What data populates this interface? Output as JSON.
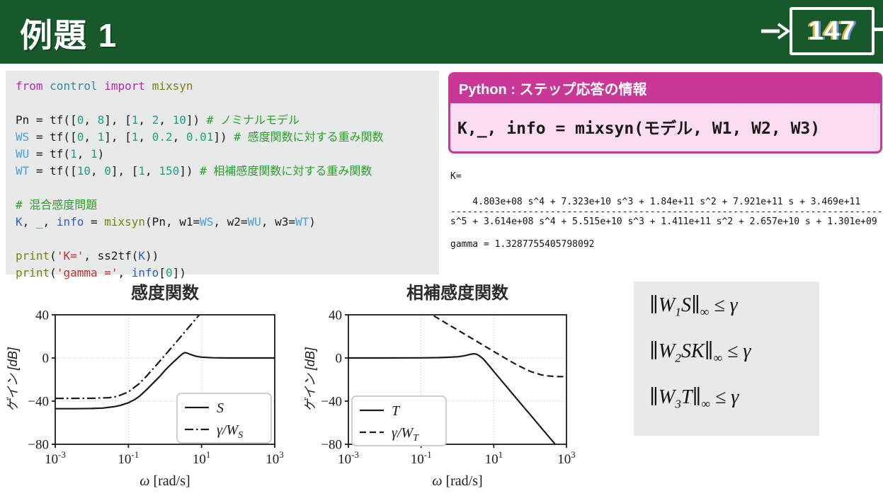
{
  "header": {
    "title": "例題 1",
    "page_number": "147"
  },
  "code_panel": {
    "syntax_colors": {
      "kw": "#bb24bb",
      "mod": "#2e8ba2",
      "fn": "#80800d",
      "num": "#1f9e85",
      "com": "#27a327",
      "str": "#c22f2f",
      "var": "#2b5fc0",
      "var2": "#4aa0dc",
      "plain": "#1a1a1a"
    },
    "lines": [
      [
        [
          "from",
          "kw"
        ],
        [
          " ",
          ""
        ],
        [
          "control",
          "mod"
        ],
        [
          " ",
          ""
        ],
        [
          "import",
          "kw"
        ],
        [
          " ",
          ""
        ],
        [
          "mixsyn",
          "fn"
        ]
      ],
      [],
      [
        [
          "Pn = tf([",
          ""
        ],
        [
          "0",
          "num"
        ],
        [
          ", ",
          ""
        ],
        [
          "8",
          "num"
        ],
        [
          "], [",
          ""
        ],
        [
          "1",
          "num"
        ],
        [
          ", ",
          ""
        ],
        [
          "2",
          "num"
        ],
        [
          ", ",
          ""
        ],
        [
          "10",
          "num"
        ],
        [
          "]) ",
          ""
        ],
        [
          "# ノミナルモデル",
          "com"
        ]
      ],
      [
        [
          "WS",
          "var2"
        ],
        [
          " = tf([",
          ""
        ],
        [
          "0",
          "num"
        ],
        [
          ", ",
          ""
        ],
        [
          "1",
          "num"
        ],
        [
          "], [",
          ""
        ],
        [
          "1",
          "num"
        ],
        [
          ", ",
          ""
        ],
        [
          "0.2",
          "num"
        ],
        [
          ", ",
          ""
        ],
        [
          "0.01",
          "num"
        ],
        [
          "]) ",
          ""
        ],
        [
          "# 感度関数に対する重み関数",
          "com"
        ]
      ],
      [
        [
          "WU",
          "var2"
        ],
        [
          " = tf(",
          ""
        ],
        [
          "1",
          "num"
        ],
        [
          ", ",
          ""
        ],
        [
          "1",
          "num"
        ],
        [
          ")",
          ""
        ]
      ],
      [
        [
          "WT",
          "var2"
        ],
        [
          " = tf([",
          ""
        ],
        [
          "10",
          "num"
        ],
        [
          ", ",
          ""
        ],
        [
          "0",
          "num"
        ],
        [
          "], [",
          ""
        ],
        [
          "1",
          "num"
        ],
        [
          ", ",
          ""
        ],
        [
          "150",
          "num"
        ],
        [
          "]) ",
          ""
        ],
        [
          "# 相補感度関数に対する重み関数",
          "com"
        ]
      ],
      [],
      [
        [
          "# 混合感度問題",
          "com"
        ]
      ],
      [
        [
          "K",
          "var"
        ],
        [
          ", ",
          ""
        ],
        [
          "_",
          "var"
        ],
        [
          ", ",
          ""
        ],
        [
          "info",
          "var"
        ],
        [
          " = ",
          ""
        ],
        [
          "mixsyn",
          "fn"
        ],
        [
          "(Pn, w1=",
          ""
        ],
        [
          "WS",
          "var2"
        ],
        [
          ", w2=",
          ""
        ],
        [
          "WU",
          "var2"
        ],
        [
          ", w3=",
          ""
        ],
        [
          "WT",
          "var2"
        ],
        [
          ")",
          ""
        ]
      ],
      [],
      [
        [
          "print",
          "fn"
        ],
        [
          "(",
          ""
        ],
        [
          "'K='",
          "str"
        ],
        [
          ", ss2tf(",
          ""
        ],
        [
          "K",
          "var"
        ],
        [
          "))",
          ""
        ]
      ],
      [
        [
          "print",
          "fn"
        ],
        [
          "(",
          ""
        ],
        [
          "'gamma ='",
          "str"
        ],
        [
          ", ",
          ""
        ],
        [
          "info",
          "var"
        ],
        [
          "[",
          ""
        ],
        [
          "0",
          "num"
        ],
        [
          "])",
          ""
        ]
      ]
    ]
  },
  "python_box": {
    "title": "Python : ステップ応答の情報",
    "code": "K,_, info = mixsyn(モデル, W1, W2, W3)",
    "accent_color": "#c93896",
    "body_color": "#fbdcf0"
  },
  "output": {
    "k_label": "K=",
    "numerator": "    4.803e+08 s^4 + 7.323e+10 s^3 + 1.84e+11 s^2 + 7.921e+11 s + 3.469e+11",
    "separator": "-------------------------------------------------------------------------------",
    "denominator": "s^5 + 3.614e+08 s^4 + 5.515e+10 s^3 + 1.411e+11 s^2 + 2.657e+10 s + 1.301e+09",
    "gamma": "gamma = 1.3287755405798092"
  },
  "equations": {
    "rows": [
      {
        "pre": "∥W",
        "sub": "1",
        "mid": "S∥",
        "inf": "∞",
        "post": " ≤ γ"
      },
      {
        "pre": "∥W",
        "sub": "2",
        "mid": "SK∥",
        "inf": "∞",
        "post": " ≤ γ"
      },
      {
        "pre": "∥W",
        "sub": "3",
        "mid": "T∥",
        "inf": "∞",
        "post": " ≤ γ"
      }
    ]
  },
  "chart_data": [
    {
      "type": "line",
      "title": "感度関数",
      "xlabel_symbol": "ω",
      "xlabel_unit": " [rad/s]",
      "ylabel": "ゲイン [dB]",
      "xscale": "log",
      "xlim": [
        0.001,
        1000
      ],
      "ylim": [
        -80,
        40
      ],
      "xticks": [
        0.001,
        0.1,
        10,
        1000
      ],
      "xtick_exponents": [
        "-3",
        "-1",
        "1",
        "3"
      ],
      "yticks": [
        40,
        0,
        -40,
        -80
      ],
      "grid": true,
      "legend_position": "lower-right",
      "series": [
        {
          "name": "S",
          "style": "solid",
          "legend": {
            "text": "S"
          },
          "x": [
            0.001,
            0.003,
            0.01,
            0.02,
            0.04,
            0.06,
            0.1,
            0.15,
            0.2,
            0.3,
            0.5,
            0.7,
            1,
            1.5,
            2,
            2.5,
            3,
            3.5,
            4,
            5,
            7,
            10,
            20,
            50,
            1000
          ],
          "y": [
            -47,
            -47,
            -46.8,
            -46.4,
            -45.2,
            -44,
            -41.5,
            -38.5,
            -35.5,
            -30,
            -22.5,
            -17.5,
            -11.5,
            -5.5,
            -1.5,
            1.5,
            3.8,
            5,
            4.6,
            3.2,
            1.6,
            0.8,
            0.2,
            0,
            0
          ]
        },
        {
          "name": "gamma/WS",
          "style": "dashdot",
          "legend": {
            "text": "γ/W",
            "sub": "S"
          },
          "x": [
            0.001,
            0.01,
            0.03,
            0.05,
            0.1,
            0.2,
            0.3,
            0.5,
            1,
            2,
            3,
            5,
            8,
            10
          ],
          "y": [
            -37.5,
            -37.4,
            -36.8,
            -35.6,
            -31.5,
            -23.6,
            -17.5,
            -9.2,
            2.6,
            14.5,
            21.6,
            30.4,
            38.6,
            42.5
          ]
        }
      ]
    },
    {
      "type": "line",
      "title": "相補感度関数",
      "xlabel_symbol": "ω",
      "xlabel_unit": " [rad/s]",
      "ylabel": "ゲイン [dB]",
      "xscale": "log",
      "xlim": [
        0.001,
        1000
      ],
      "ylim": [
        -80,
        40
      ],
      "xticks": [
        0.001,
        0.1,
        10,
        1000
      ],
      "xtick_exponents": [
        "-3",
        "-1",
        "1",
        "3"
      ],
      "yticks": [
        40,
        0,
        -40,
        -80
      ],
      "grid": true,
      "legend_position": "center-left",
      "series": [
        {
          "name": "T",
          "style": "solid",
          "legend": {
            "text": "T"
          },
          "x": [
            0.001,
            0.01,
            0.1,
            0.3,
            0.5,
            1,
            1.5,
            2,
            2.5,
            3,
            3.5,
            4,
            5,
            6,
            8,
            10,
            20,
            50,
            100,
            200,
            400,
            1000
          ],
          "y": [
            0,
            0,
            0.1,
            0.3,
            0.6,
            1.1,
            1.9,
            2.9,
            3.7,
            3.9,
            3.2,
            2,
            -0.5,
            -3.5,
            -8.5,
            -12.5,
            -24.5,
            -40.5,
            -52.5,
            -64.5,
            -76.5,
            -92
          ]
        },
        {
          "name": "gamma/WT",
          "style": "dashed",
          "legend": {
            "text": "γ/W",
            "sub": "T"
          },
          "x": [
            0.13,
            0.2,
            0.3,
            0.5,
            1,
            2,
            3,
            5,
            10,
            20,
            30,
            50,
            100,
            200,
            300,
            500,
            1000
          ],
          "y": [
            43.7,
            40,
            36.5,
            32,
            26,
            20,
            16.5,
            12,
            6,
            0.05,
            -3.4,
            -7.5,
            -12.4,
            -15.6,
            -16.6,
            -17.2,
            -17.4
          ]
        }
      ]
    }
  ]
}
